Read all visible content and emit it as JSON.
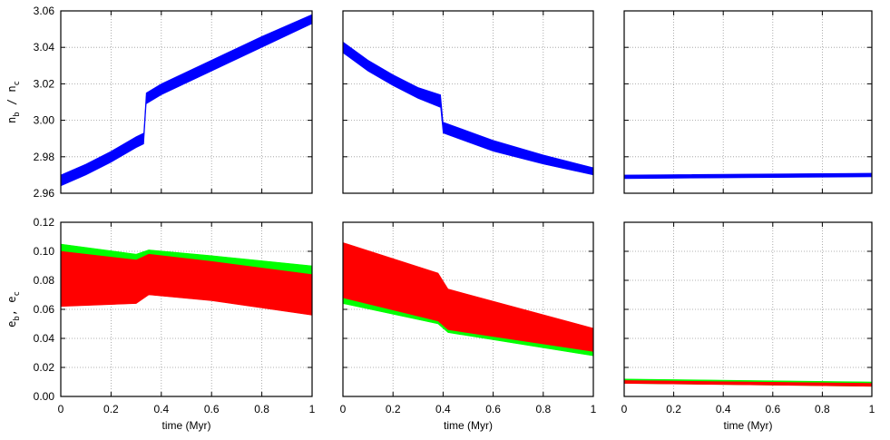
{
  "chart_data": [
    {
      "type": "band",
      "xlim": [
        0,
        1
      ],
      "xticks": [
        0,
        0.2,
        0.4,
        0.6,
        0.8,
        1
      ],
      "xtick_labels": false,
      "ylim": [
        2.96,
        3.06
      ],
      "yticks": [
        2.96,
        2.98,
        {
          "value": 3,
          "label": "3.00"
        },
        3.02,
        3.04,
        3.06
      ],
      "ytick_labels": true,
      "grid": true,
      "ylabel": [
        "n",
        "b",
        " / n",
        "c"
      ],
      "series": [
        {
          "color": "#0000ff",
          "x": [
            0,
            0.1,
            0.2,
            0.3,
            0.33,
            0.34,
            0.4,
            0.6,
            0.8,
            1
          ],
          "lower": [
            2.964,
            2.97,
            2.977,
            2.985,
            2.987,
            3.009,
            3.014,
            3.027,
            3.04,
            3.053
          ],
          "upper": [
            2.97,
            2.976,
            2.983,
            2.991,
            2.993,
            3.015,
            3.02,
            3.033,
            3.046,
            3.058
          ]
        }
      ]
    },
    {
      "type": "band",
      "xlim": [
        0,
        1
      ],
      "xticks": [
        0,
        0.2,
        0.4,
        0.6,
        0.8,
        1
      ],
      "xtick_labels": false,
      "ylim": [
        2.96,
        3.06
      ],
      "yticks": [
        2.96,
        2.98,
        {
          "value": 3,
          "label": "3.00"
        },
        3.02,
        3.04,
        3.06
      ],
      "ytick_labels": false,
      "grid": true,
      "series": [
        {
          "color": "#0000ff",
          "x": [
            0,
            0.1,
            0.2,
            0.3,
            0.39,
            0.4,
            0.5,
            0.6,
            0.8,
            1
          ],
          "lower": [
            3.037,
            3.027,
            3.019,
            3.012,
            3.007,
            2.993,
            2.988,
            2.983,
            2.976,
            2.97
          ],
          "upper": [
            3.043,
            3.033,
            3.025,
            3.018,
            3.014,
            2.999,
            2.994,
            2.989,
            2.981,
            2.974
          ]
        }
      ]
    },
    {
      "type": "band",
      "xlim": [
        0,
        1
      ],
      "xticks": [
        0,
        0.2,
        0.4,
        0.6,
        0.8,
        1
      ],
      "xtick_labels": false,
      "ylim": [
        2.96,
        3.06
      ],
      "yticks": [
        2.96,
        2.98,
        {
          "value": 3,
          "label": "3.00"
        },
        3.02,
        3.04,
        3.06
      ],
      "ytick_labels": false,
      "grid": true,
      "series": [
        {
          "color": "#0000ff",
          "x": [
            0,
            1
          ],
          "lower": [
            2.968,
            2.969
          ],
          "upper": [
            2.97,
            2.971
          ]
        }
      ]
    },
    {
      "type": "band",
      "xlim": [
        0,
        1
      ],
      "xticks": [
        0,
        0.2,
        0.4,
        0.6,
        0.8,
        1
      ],
      "xtick_labels": true,
      "xlabel": "time (Myr)",
      "ylim": [
        0,
        0.12
      ],
      "yticks": [
        {
          "value": 0,
          "label": "0.00"
        },
        0.02,
        0.04,
        0.06,
        0.08,
        {
          "value": 0.1,
          "label": "0.10"
        },
        0.12
      ],
      "ytick_labels": true,
      "grid": true,
      "ylabel": [
        "e",
        "b",
        ",  e",
        "c"
      ],
      "series": [
        {
          "color": "#00ff00",
          "x": [
            0,
            0.3,
            0.35,
            0.6,
            1
          ],
          "lower": [
            0.064,
            0.066,
            0.072,
            0.068,
            0.06
          ],
          "upper": [
            0.105,
            0.098,
            0.101,
            0.097,
            0.09
          ]
        },
        {
          "color": "#ff0000",
          "x": [
            0,
            0.3,
            0.35,
            0.6,
            1
          ],
          "lower": [
            0.062,
            0.064,
            0.07,
            0.066,
            0.056
          ],
          "upper": [
            0.1,
            0.094,
            0.098,
            0.093,
            0.084
          ]
        }
      ]
    },
    {
      "type": "band",
      "xlim": [
        0,
        1
      ],
      "xticks": [
        0,
        0.2,
        0.4,
        0.6,
        0.8,
        1
      ],
      "xtick_labels": true,
      "xlabel": "time (Myr)",
      "ylim": [
        0,
        0.12
      ],
      "yticks": [
        {
          "value": 0,
          "label": "0.00"
        },
        0.02,
        0.04,
        0.06,
        0.08,
        {
          "value": 0.1,
          "label": "0.10"
        },
        0.12
      ],
      "ytick_labels": false,
      "grid": true,
      "series": [
        {
          "color": "#00ff00",
          "x": [
            0,
            0.38,
            0.42,
            1
          ],
          "lower": [
            0.064,
            0.05,
            0.044,
            0.028
          ],
          "upper": [
            0.102,
            0.082,
            0.07,
            0.045
          ]
        },
        {
          "color": "#ff0000",
          "x": [
            0,
            0.38,
            0.42,
            1
          ],
          "lower": [
            0.068,
            0.052,
            0.046,
            0.031
          ],
          "upper": [
            0.106,
            0.085,
            0.074,
            0.047
          ]
        }
      ]
    },
    {
      "type": "band",
      "xlim": [
        0,
        1
      ],
      "xticks": [
        0,
        0.2,
        0.4,
        0.6,
        0.8,
        1
      ],
      "xtick_labels": true,
      "xlabel": "time (Myr)",
      "ylim": [
        0,
        0.12
      ],
      "yticks": [
        {
          "value": 0,
          "label": "0.00"
        },
        0.02,
        0.04,
        0.06,
        0.08,
        {
          "value": 0.1,
          "label": "0.10"
        },
        0.12
      ],
      "ytick_labels": false,
      "grid": true,
      "series": [
        {
          "color": "#00ff00",
          "x": [
            0,
            1
          ],
          "lower": [
            0.009,
            0.007
          ],
          "upper": [
            0.012,
            0.01
          ]
        },
        {
          "color": "#ff0000",
          "x": [
            0,
            1
          ],
          "lower": [
            0.009,
            0.007
          ],
          "upper": [
            0.011,
            0.009
          ]
        }
      ]
    }
  ]
}
